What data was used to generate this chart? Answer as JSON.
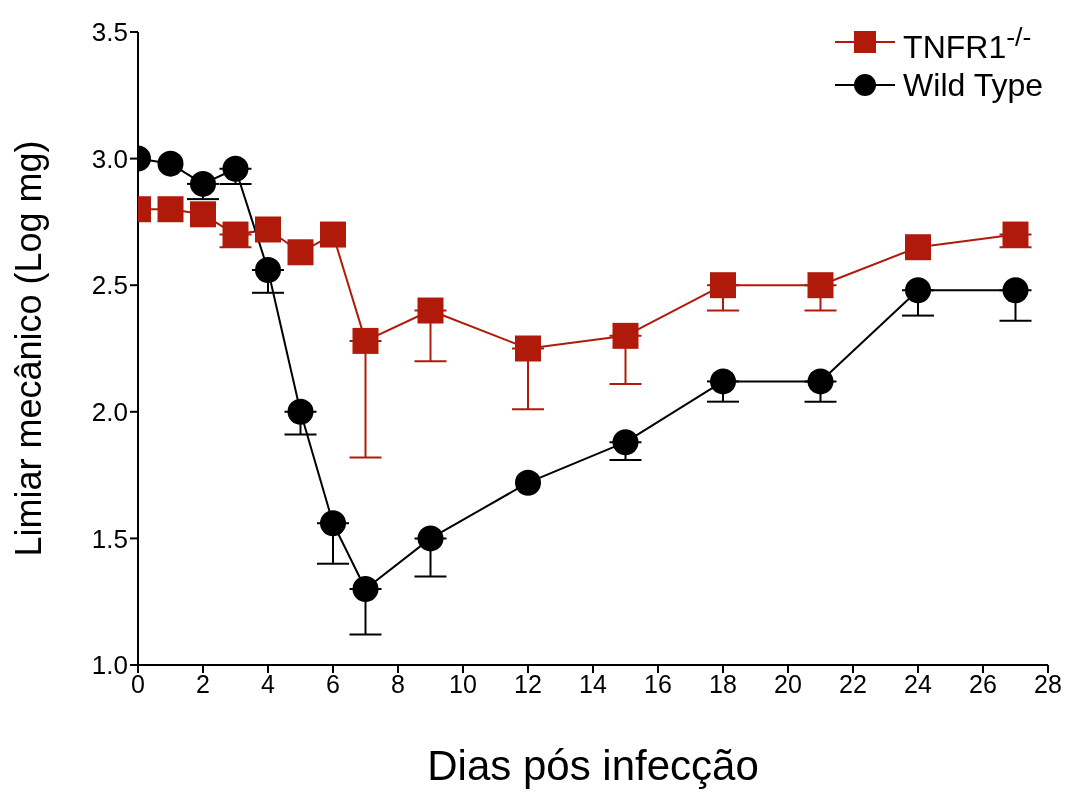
{
  "chart_data": {
    "type": "line",
    "xlabel": "Dias pós infecção",
    "ylabel": "Limiar mecânico (Log mg)",
    "x": [
      0,
      1,
      2,
      3,
      4,
      5,
      6,
      7,
      9,
      12,
      15,
      18,
      21,
      24,
      27
    ],
    "xlim": [
      0,
      28
    ],
    "xticks": [
      0,
      2,
      4,
      6,
      8,
      10,
      12,
      14,
      16,
      18,
      20,
      22,
      24,
      26,
      28
    ],
    "ylim": [
      1.0,
      3.5
    ],
    "yticks": [
      {
        "value": 1.0,
        "label": "1.0"
      },
      {
        "value": 1.5,
        "label": "1.5"
      },
      {
        "value": 2.0,
        "label": "2.0"
      },
      {
        "value": 2.5,
        "label": "2.5"
      },
      {
        "value": 3.0,
        "label": "3.0"
      },
      {
        "value": 3.5,
        "label": "3.5"
      }
    ],
    "grid": false,
    "legend": "top right",
    "line_style": "solid",
    "series": [
      {
        "name": "TNFR1$^{-/-}$",
        "color": "#b01a0b",
        "marker": "square",
        "values": [
          2.8,
          2.8,
          2.78,
          2.7,
          2.72,
          2.63,
          2.7,
          2.28,
          2.4,
          2.25,
          2.3,
          2.5,
          2.5,
          2.65,
          2.7
        ],
        "errors": [
          null,
          null,
          null,
          [
            2.65,
            2.7
          ],
          null,
          null,
          null,
          [
            1.82,
            2.28
          ],
          [
            2.2,
            2.4
          ],
          [
            2.01,
            2.25
          ],
          [
            2.11,
            2.3
          ],
          [
            2.4,
            2.5
          ],
          [
            2.4,
            2.5
          ],
          null,
          [
            2.65,
            2.7
          ]
        ]
      },
      {
        "name": "Wild Type",
        "color": "#000000",
        "marker": "circle",
        "values": [
          3.0,
          2.98,
          2.9,
          2.96,
          2.56,
          2.0,
          1.56,
          1.3,
          1.5,
          1.72,
          1.88,
          2.12,
          2.12,
          2.48,
          2.48
        ],
        "errors": [
          null,
          null,
          [
            2.84,
            2.9
          ],
          [
            2.9,
            2.96
          ],
          [
            2.47,
            2.56
          ],
          [
            1.91,
            2.0
          ],
          [
            1.4,
            1.56
          ],
          [
            1.12,
            1.3
          ],
          [
            1.35,
            1.5
          ],
          null,
          [
            1.81,
            1.88
          ],
          [
            2.04,
            2.12
          ],
          [
            2.04,
            2.12
          ],
          [
            2.38,
            2.48
          ],
          [
            2.36,
            2.48
          ]
        ]
      }
    ]
  }
}
